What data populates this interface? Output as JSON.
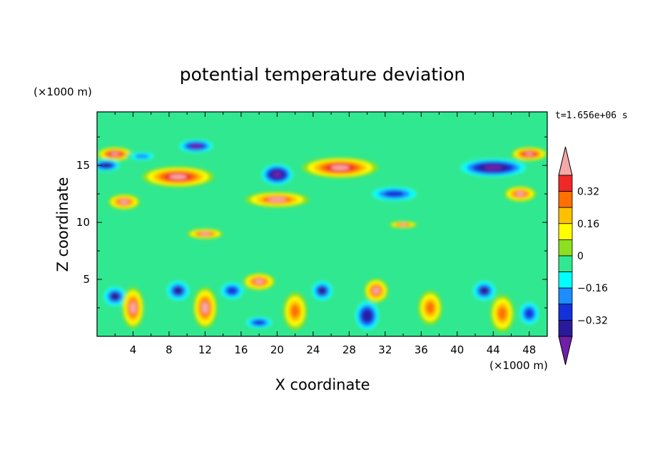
{
  "chart_data": {
    "type": "heatmap",
    "title": "potential temperature deviation",
    "xlabel": "X coordinate",
    "ylabel": "Z coordinate",
    "x_unit": "(×1000 m)",
    "y_unit": "(×1000 m)",
    "time_label": "t=1.656e+06 s",
    "xlim": [
      0,
      50
    ],
    "ylim": [
      0,
      19.7
    ],
    "x_ticks": [
      "4",
      "8",
      "12",
      "16",
      "20",
      "24",
      "28",
      "32",
      "36",
      "40",
      "44",
      "48"
    ],
    "y_ticks": [
      "5",
      "10",
      "15"
    ],
    "colorbar": {
      "levels": [
        -0.4,
        -0.32,
        -0.24,
        -0.16,
        -0.08,
        0,
        0.08,
        0.16,
        0.24,
        0.32,
        0.4
      ],
      "tick_labels": [
        "0.32",
        "0.16",
        "0",
        "−0.16",
        "−0.32"
      ],
      "colors": [
        "#7020a8",
        "#2a1a9a",
        "#1430d8",
        "#1c8cff",
        "#00ffff",
        "#30e890",
        "#8ce020",
        "#ffff00",
        "#ffc000",
        "#ff7000",
        "#f02828",
        "#f4a8a8"
      ]
    },
    "features": [
      {
        "x": 9,
        "z": 14.0,
        "value": 0.45
      },
      {
        "x": 27,
        "z": 14.8,
        "value": 0.45
      },
      {
        "x": 20,
        "z": 12.0,
        "value": 0.42
      },
      {
        "x": 2,
        "z": 16.0,
        "value": 0.45
      },
      {
        "x": 48,
        "z": 16.0,
        "value": 0.45
      },
      {
        "x": 3,
        "z": 11.8,
        "value": 0.42
      },
      {
        "x": 47,
        "z": 12.5,
        "value": 0.42
      },
      {
        "x": 12,
        "z": 9.0,
        "value": 0.42
      },
      {
        "x": 34,
        "z": 9.8,
        "value": 0.4
      },
      {
        "x": 11,
        "z": 16.7,
        "value": -0.42
      },
      {
        "x": 20,
        "z": 14.2,
        "value": -0.45
      },
      {
        "x": 44,
        "z": 14.8,
        "value": -0.45
      },
      {
        "x": 33,
        "z": 12.5,
        "value": -0.3
      },
      {
        "x": 1,
        "z": 15.0,
        "value": -0.4
      },
      {
        "x": 5,
        "z": 15.8,
        "value": -0.2
      },
      {
        "x": 2,
        "z": 3.5,
        "value": -0.35
      },
      {
        "x": 9,
        "z": 4.0,
        "value": -0.35
      },
      {
        "x": 15,
        "z": 4.0,
        "value": -0.3
      },
      {
        "x": 25,
        "z": 4.0,
        "value": -0.35
      },
      {
        "x": 30,
        "z": 1.8,
        "value": -0.4
      },
      {
        "x": 43,
        "z": 4.0,
        "value": -0.35
      },
      {
        "x": 48,
        "z": 2.0,
        "value": -0.3
      },
      {
        "x": 4,
        "z": 2.5,
        "value": 0.4
      },
      {
        "x": 12,
        "z": 2.5,
        "value": 0.4
      },
      {
        "x": 18,
        "z": 4.8,
        "value": 0.4
      },
      {
        "x": 22,
        "z": 2.2,
        "value": 0.3
      },
      {
        "x": 31,
        "z": 4.0,
        "value": 0.4
      },
      {
        "x": 37,
        "z": 2.5,
        "value": 0.3
      },
      {
        "x": 45,
        "z": 2.0,
        "value": 0.3
      },
      {
        "x": 18,
        "z": 1.2,
        "value": -0.3
      }
    ]
  }
}
